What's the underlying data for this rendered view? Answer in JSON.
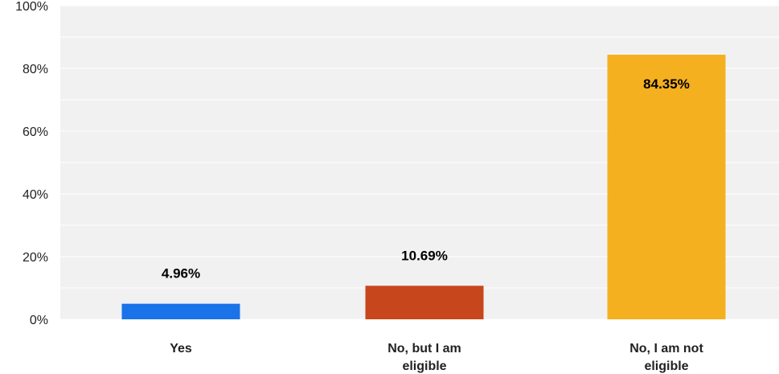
{
  "chart_data": {
    "type": "bar",
    "categories": [
      "Yes",
      "No, but I am eligible",
      "No, I am not eligible"
    ],
    "category_label_lines": [
      [
        "Yes"
      ],
      [
        "No, but I am",
        "eligible"
      ],
      [
        "No, I am not",
        "eligible"
      ]
    ],
    "values": [
      4.96,
      10.69,
      84.35
    ],
    "data_labels": [
      "4.96%",
      "10.69%",
      "84.35%"
    ],
    "colors": [
      "#1a73e8",
      "#c8461b",
      "#f5b01f"
    ],
    "ylim": [
      0,
      100
    ],
    "yticks": [
      0,
      20,
      40,
      60,
      80,
      100
    ],
    "ytick_labels": [
      "0%",
      "20%",
      "40%",
      "60%",
      "80%",
      "100%"
    ],
    "grid": true,
    "title": "",
    "xlabel": "",
    "ylabel": ""
  }
}
